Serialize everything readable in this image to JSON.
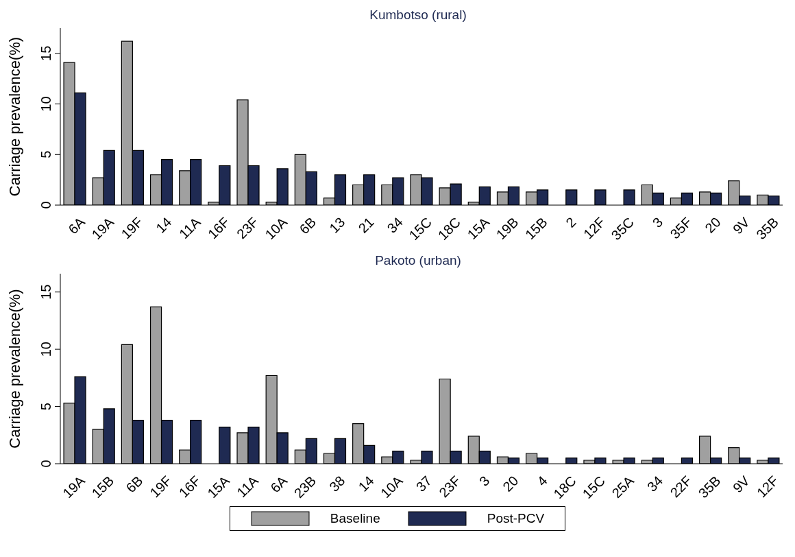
{
  "chart_data": [
    {
      "type": "bar",
      "title": "Kumbotso (rural)",
      "ylabel": "Carriage prevalence(%)",
      "categories": [
        "6A",
        "19A",
        "19F",
        "14",
        "11A",
        "16F",
        "23F",
        "10A",
        "6B",
        "13",
        "21",
        "34",
        "15C",
        "18C",
        "15A",
        "19B",
        "15B",
        "2",
        "12F",
        "35C",
        "3",
        "35F",
        "20",
        "9V",
        "35B"
      ],
      "series": [
        {
          "color": "#a0a0a0",
          "values": [
            14.1,
            2.7,
            16.2,
            3.0,
            3.4,
            0.3,
            10.4,
            0.3,
            5.0,
            0.7,
            2.0,
            2.0,
            3.0,
            1.7,
            0.3,
            1.3,
            1.3,
            0,
            0,
            0,
            2.0,
            0.7,
            1.3,
            2.4,
            1.0
          ]
        },
        {
          "color": "#1f2a52",
          "values": [
            11.1,
            5.4,
            5.4,
            4.5,
            4.5,
            3.9,
            3.9,
            3.6,
            3.3,
            3.0,
            3.0,
            2.7,
            2.7,
            2.1,
            1.8,
            1.8,
            1.5,
            1.5,
            1.5,
            1.5,
            1.2,
            1.2,
            1.2,
            0.9,
            0.9
          ]
        }
      ],
      "ylim": [
        0,
        17.5
      ],
      "yticks": [
        0,
        5,
        10,
        15
      ],
      "grid": false,
      "legend": false
    },
    {
      "type": "bar",
      "title": "Pakoto (urban)",
      "ylabel": "Carriage prevalence(%)",
      "categories": [
        "19A",
        "15B",
        "6B",
        "19F",
        "16F",
        "15A",
        "11A",
        "6A",
        "23B",
        "38",
        "14",
        "10A",
        "37",
        "23F",
        "3",
        "20",
        "4",
        "18C",
        "15C",
        "25A",
        "34",
        "22F",
        "35B",
        "9V",
        "12F"
      ],
      "series": [
        {
          "name": "Baseline",
          "color": "#a0a0a0",
          "values": [
            5.3,
            3.0,
            10.4,
            13.7,
            1.2,
            0,
            2.7,
            7.7,
            1.2,
            0.9,
            3.5,
            0.6,
            0.3,
            7.4,
            2.4,
            0.6,
            0.9,
            0,
            0.3,
            0.3,
            0.3,
            0,
            2.4,
            1.4,
            0.3
          ]
        },
        {
          "name": "Post-PCV",
          "color": "#1f2a52",
          "values": [
            7.6,
            4.8,
            3.8,
            3.8,
            3.8,
            3.2,
            3.2,
            2.7,
            2.2,
            2.2,
            1.6,
            1.1,
            1.1,
            1.1,
            1.1,
            0.5,
            0.5,
            0.5,
            0.5,
            0.5,
            0.5,
            0.5,
            0.5,
            0.5,
            0.5
          ]
        }
      ],
      "ylim": [
        0,
        16.6
      ],
      "yticks": [
        0,
        5,
        10,
        15
      ],
      "grid": false,
      "legend": "bottom"
    }
  ]
}
